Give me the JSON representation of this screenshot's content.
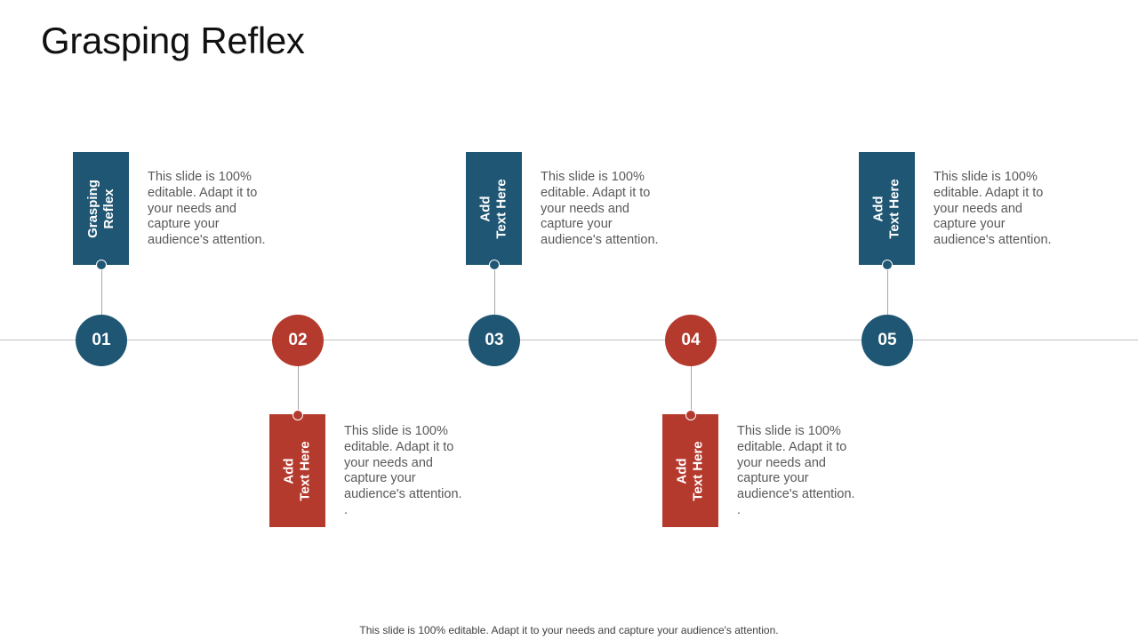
{
  "title": "Grasping Reflex",
  "colors": {
    "blue": "#1f5673",
    "red": "#b53a2e"
  },
  "steps": [
    {
      "number": "01",
      "tag": "Grasping\nReflex",
      "text": "This slide is 100%\neditable. Adapt it to\nyour needs and\ncapture your\naudience's attention."
    },
    {
      "number": "02",
      "tag": "Add\nText Here",
      "text": "This slide is 100%\neditable. Adapt it to\nyour needs and\ncapture your\naudience's attention.\n."
    },
    {
      "number": "03",
      "tag": "Add\nText Here",
      "text": "This slide is 100%\neditable. Adapt it to\nyour needs and\ncapture your\naudience's attention."
    },
    {
      "number": "04",
      "tag": "Add\nText Here",
      "text": "This slide is 100%\neditable. Adapt it to\nyour needs and\ncapture your\naudience's attention.\n."
    },
    {
      "number": "05",
      "tag": "Add\nText Here",
      "text": "This slide is 100%\neditable. Adapt it to\nyour needs and\ncapture your\naudience's attention."
    }
  ],
  "footer": "This slide is 100% editable. Adapt it to your needs and capture your audience's attention."
}
